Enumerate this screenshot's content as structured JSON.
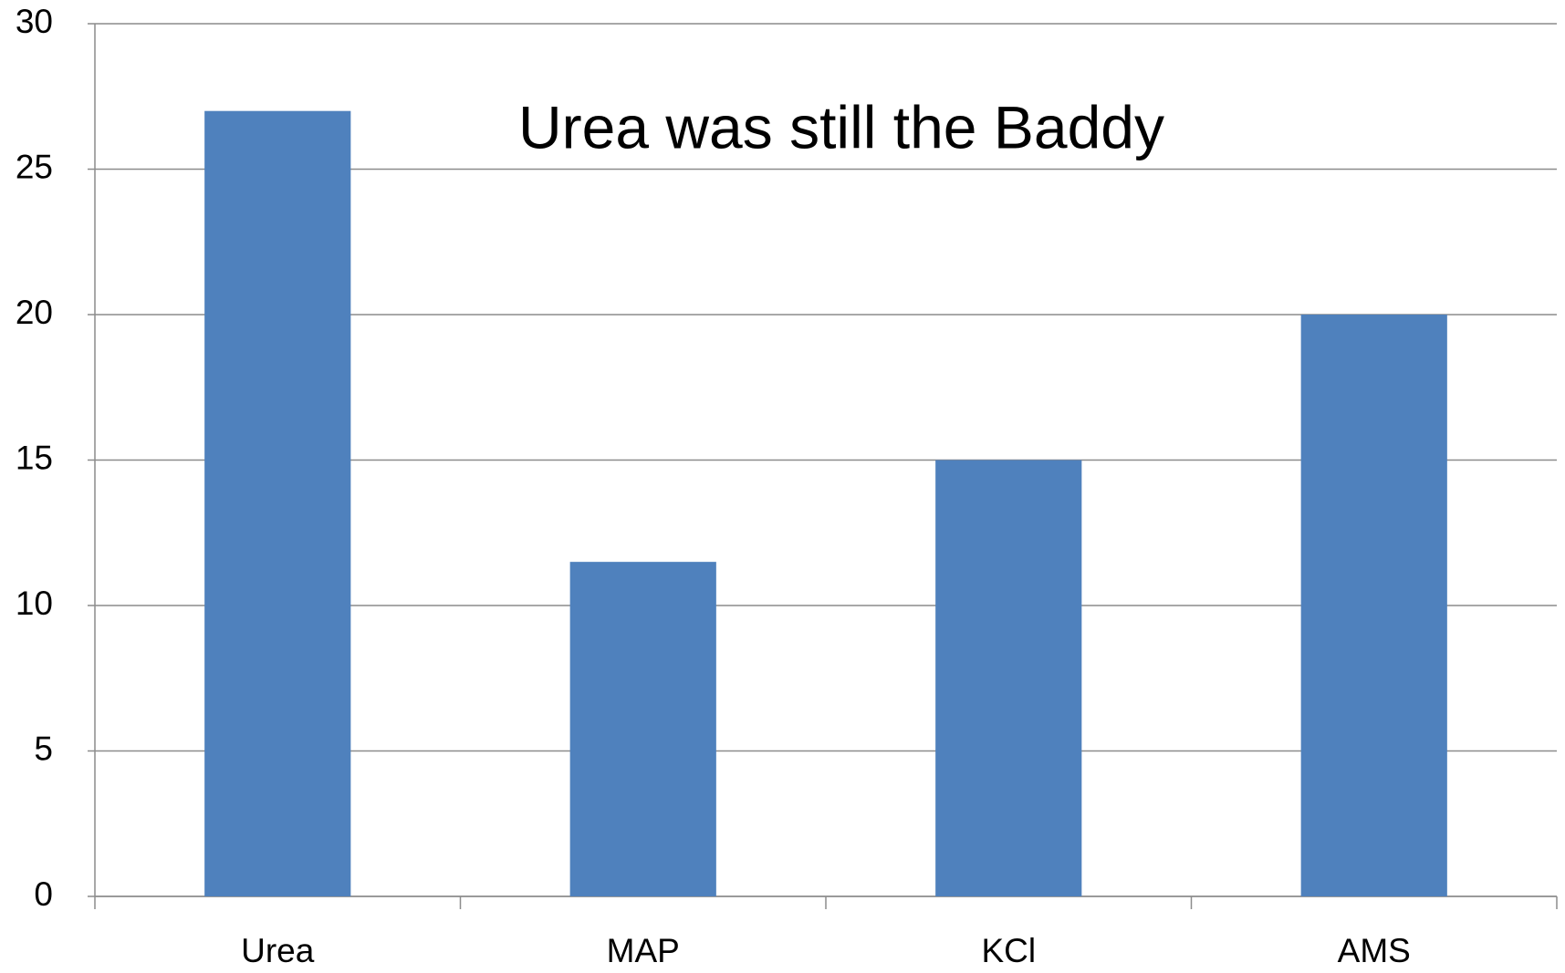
{
  "chart_data": {
    "type": "bar",
    "title": "Urea was still the Baddy",
    "categories": [
      "Urea",
      "MAP",
      "KCl",
      "AMS"
    ],
    "values": [
      27,
      11.5,
      15,
      20
    ],
    "color": "#4f81bd",
    "ylim": [
      0,
      30
    ],
    "yticks": [
      0,
      5,
      10,
      15,
      20,
      25,
      30
    ],
    "grid": true
  }
}
